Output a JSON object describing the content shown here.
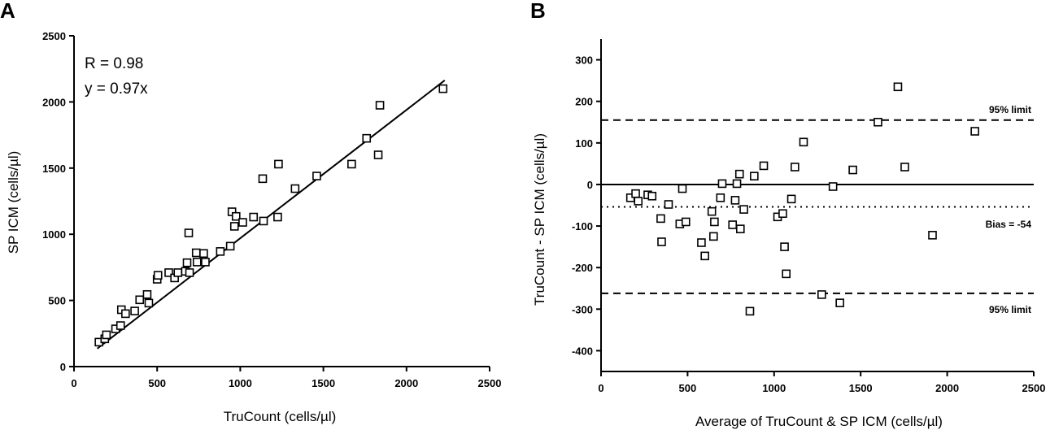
{
  "chart_data": [
    {
      "type": "scatter",
      "panel_label": "A",
      "xlabel": "TruCount (cells/µl)",
      "ylabel": "SP ICM (cells/µl)",
      "xlim": [
        0,
        2500
      ],
      "ylim": [
        0,
        2500
      ],
      "xticks": [
        "0",
        "500",
        "1000",
        "1500",
        "2000",
        "2500"
      ],
      "yticks": [
        "0",
        "500",
        "1000",
        "1500",
        "2000",
        "2500"
      ],
      "annotations": [
        "R = 0.98",
        "y = 0.97x"
      ],
      "regression": {
        "slope": 0.97,
        "x_range": [
          140,
          2230
        ]
      },
      "points": [
        [
          150,
          185
        ],
        [
          185,
          210
        ],
        [
          195,
          240
        ],
        [
          250,
          285
        ],
        [
          280,
          310
        ],
        [
          285,
          430
        ],
        [
          310,
          400
        ],
        [
          365,
          420
        ],
        [
          395,
          505
        ],
        [
          440,
          545
        ],
        [
          450,
          480
        ],
        [
          500,
          660
        ],
        [
          505,
          690
        ],
        [
          570,
          710
        ],
        [
          605,
          670
        ],
        [
          625,
          710
        ],
        [
          670,
          720
        ],
        [
          680,
          785
        ],
        [
          690,
          1010
        ],
        [
          695,
          710
        ],
        [
          735,
          860
        ],
        [
          740,
          790
        ],
        [
          780,
          855
        ],
        [
          790,
          790
        ],
        [
          880,
          870
        ],
        [
          940,
          910
        ],
        [
          950,
          1170
        ],
        [
          965,
          1060
        ],
        [
          975,
          1135
        ],
        [
          1015,
          1090
        ],
        [
          1080,
          1130
        ],
        [
          1135,
          1420
        ],
        [
          1140,
          1100
        ],
        [
          1230,
          1530
        ],
        [
          1225,
          1130
        ],
        [
          1330,
          1345
        ],
        [
          1460,
          1440
        ],
        [
          1670,
          1530
        ],
        [
          1760,
          1725
        ],
        [
          1830,
          1600
        ],
        [
          1840,
          1975
        ],
        [
          2220,
          2100
        ]
      ]
    },
    {
      "type": "scatter",
      "panel_label": "B",
      "xlabel": "Average of TruCount & SP ICM (cells/µl)",
      "ylabel": "TruCount - SP ICM (cells/µl)",
      "xlim": [
        0,
        2500
      ],
      "ylim": [
        -450,
        350
      ],
      "xticks": [
        "0",
        "500",
        "1000",
        "1500",
        "2000",
        "2500"
      ],
      "yticks": [
        "300",
        "200",
        "100",
        "0",
        "-100",
        "-200",
        "-300",
        "-400"
      ],
      "reference_lines": [
        {
          "label": "95% limit",
          "y": 155,
          "style": "dashed"
        },
        {
          "label": "",
          "y": 0,
          "style": "solid"
        },
        {
          "label": "Bias = -54",
          "y": -54,
          "style": "dotted"
        },
        {
          "label": "95% limit",
          "y": -262,
          "style": "dashed"
        }
      ],
      "line_labels": [
        "95% limit",
        "Bias = -54",
        "95% limit"
      ],
      "points": [
        [
          170,
          -32
        ],
        [
          200,
          -22
        ],
        [
          215,
          -40
        ],
        [
          270,
          -25
        ],
        [
          295,
          -28
        ],
        [
          345,
          -82
        ],
        [
          350,
          -138
        ],
        [
          390,
          -48
        ],
        [
          455,
          -95
        ],
        [
          470,
          -10
        ],
        [
          490,
          -90
        ],
        [
          580,
          -140
        ],
        [
          600,
          -172
        ],
        [
          640,
          -65
        ],
        [
          650,
          -125
        ],
        [
          655,
          -90
        ],
        [
          690,
          -32
        ],
        [
          700,
          2
        ],
        [
          760,
          -97
        ],
        [
          775,
          -38
        ],
        [
          785,
          2
        ],
        [
          800,
          25
        ],
        [
          805,
          -107
        ],
        [
          825,
          -60
        ],
        [
          860,
          -305
        ],
        [
          885,
          20
        ],
        [
          940,
          45
        ],
        [
          1020,
          -78
        ],
        [
          1050,
          -70
        ],
        [
          1060,
          -150
        ],
        [
          1070,
          -215
        ],
        [
          1100,
          -35
        ],
        [
          1120,
          42
        ],
        [
          1170,
          102
        ],
        [
          1275,
          -265
        ],
        [
          1340,
          -5
        ],
        [
          1380,
          -285
        ],
        [
          1455,
          35
        ],
        [
          1600,
          150
        ],
        [
          1715,
          235
        ],
        [
          1755,
          42
        ],
        [
          1915,
          -122
        ],
        [
          2160,
          128
        ]
      ]
    }
  ]
}
